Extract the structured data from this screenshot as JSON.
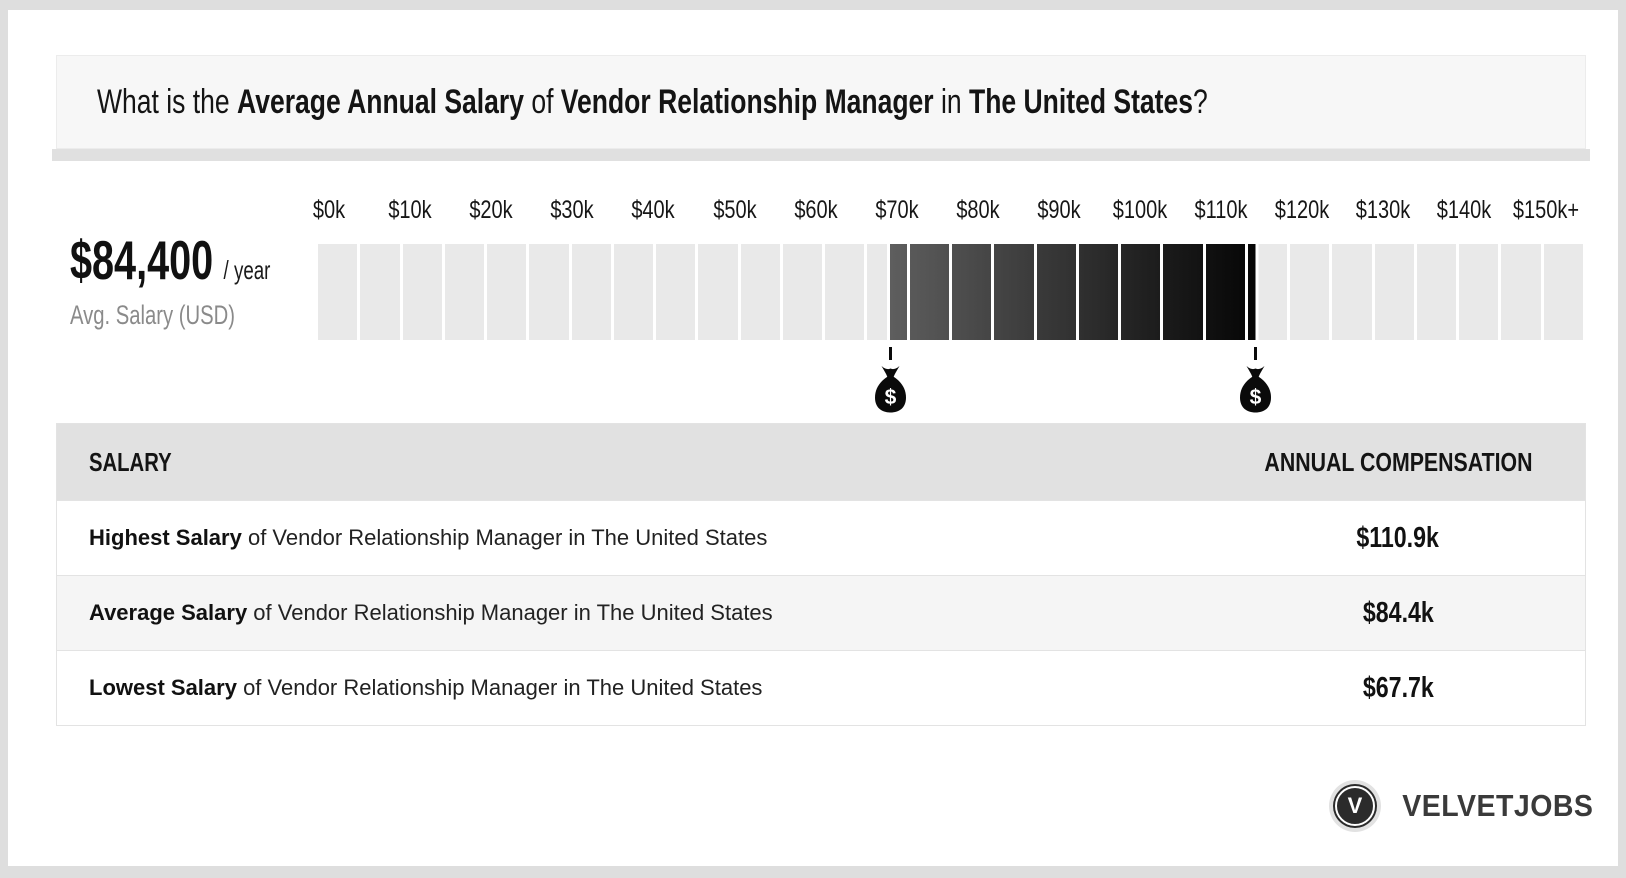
{
  "title": {
    "parts": [
      {
        "text": "What is the ",
        "bold": false
      },
      {
        "text": "Average Annual Salary",
        "bold": true
      },
      {
        "text": " of ",
        "bold": false
      },
      {
        "text": "Vendor Relationship Manager",
        "bold": true
      },
      {
        "text": " in ",
        "bold": false
      },
      {
        "text": "The United States",
        "bold": true
      },
      {
        "text": "?",
        "bold": false
      }
    ]
  },
  "summary": {
    "amount": "$84,400",
    "suffix": "/ year",
    "caption": "Avg. Salary (USD)"
  },
  "chart_data": {
    "type": "range-bar",
    "title": "Salary range of Vendor Relationship Manager in The United States",
    "x_tick_labels": [
      "$0k",
      "$10k",
      "$20k",
      "$30k",
      "$40k",
      "$50k",
      "$60k",
      "$70k",
      "$80k",
      "$90k",
      "$100k",
      "$110k",
      "$120k",
      "$130k",
      "$140k",
      "$150k+"
    ],
    "axis_min": 0,
    "axis_max": 150000,
    "segment_size": 5000,
    "segments": 30,
    "lowest_salary": 67700,
    "average_salary": 84400,
    "highest_salary": 110900,
    "range_markers": [
      67700,
      110900
    ],
    "marker_icon": "money-bag",
    "grid": false,
    "colors": {
      "base_cell": "#e9e9e9",
      "range_start": "#5e5e5e",
      "range_end": "#050505",
      "gap": "#ffffff"
    }
  },
  "table": {
    "headers": [
      "SALARY",
      "ANNUAL COMPENSATION"
    ],
    "rows": [
      {
        "label_bold": "Highest Salary",
        "label_rest": " of Vendor Relationship Manager in The United States",
        "value": "$110.9k"
      },
      {
        "label_bold": "Average Salary",
        "label_rest": " of Vendor Relationship Manager in The United States",
        "value": "$84.4k"
      },
      {
        "label_bold": "Lowest Salary",
        "label_rest": " of Vendor Relationship Manager in The United States",
        "value": "$67.7k"
      }
    ]
  },
  "brand": {
    "initial": "V",
    "name": "VELVETJOBS"
  }
}
